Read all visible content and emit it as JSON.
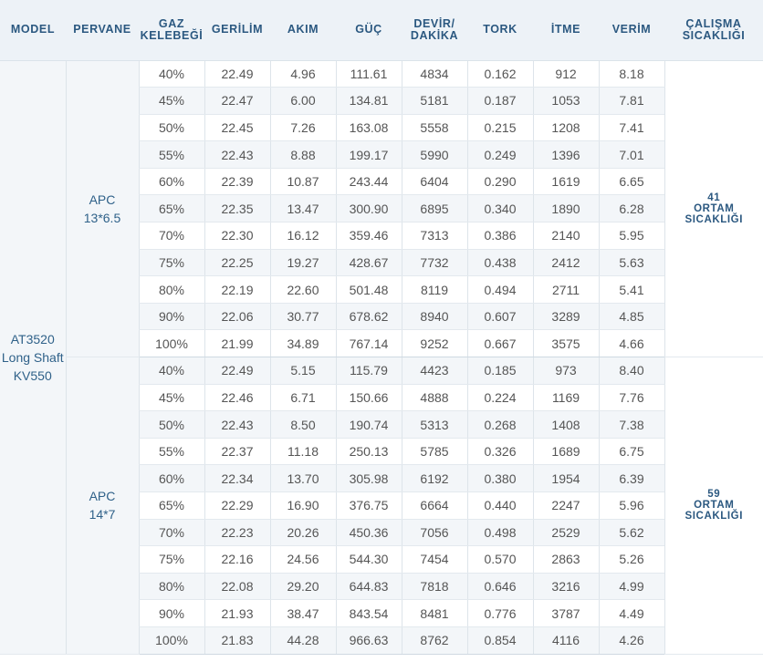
{
  "headers": [
    [
      "MODEL"
    ],
    [
      "PERVANE"
    ],
    [
      "GAZ",
      "KELEBEĞİ"
    ],
    [
      "GERİLİM"
    ],
    [
      "AKIM"
    ],
    [
      "GÜÇ"
    ],
    [
      "DEVİR/",
      "DAKİKA"
    ],
    [
      "TORK"
    ],
    [
      "İTME"
    ],
    [
      "VERİM"
    ],
    [
      "ÇALIŞMA",
      "SICAKLIĞI"
    ]
  ],
  "model": [
    "AT3520",
    "Long Shaft",
    "KV550"
  ],
  "groups": [
    {
      "propeller": [
        "APC",
        "13*6.5"
      ],
      "temp": [
        "41",
        "ORTAM",
        "SICAKLIĞI"
      ],
      "rows": [
        [
          "40%",
          "22.49",
          "4.96",
          "111.61",
          "4834",
          "0.162",
          "912",
          "8.18"
        ],
        [
          "45%",
          "22.47",
          "6.00",
          "134.81",
          "5181",
          "0.187",
          "1053",
          "7.81"
        ],
        [
          "50%",
          "22.45",
          "7.26",
          "163.08",
          "5558",
          "0.215",
          "1208",
          "7.41"
        ],
        [
          "55%",
          "22.43",
          "8.88",
          "199.17",
          "5990",
          "0.249",
          "1396",
          "7.01"
        ],
        [
          "60%",
          "22.39",
          "10.87",
          "243.44",
          "6404",
          "0.290",
          "1619",
          "6.65"
        ],
        [
          "65%",
          "22.35",
          "13.47",
          "300.90",
          "6895",
          "0.340",
          "1890",
          "6.28"
        ],
        [
          "70%",
          "22.30",
          "16.12",
          "359.46",
          "7313",
          "0.386",
          "2140",
          "5.95"
        ],
        [
          "75%",
          "22.25",
          "19.27",
          "428.67",
          "7732",
          "0.438",
          "2412",
          "5.63"
        ],
        [
          "80%",
          "22.19",
          "22.60",
          "501.48",
          "8119",
          "0.494",
          "2711",
          "5.41"
        ],
        [
          "90%",
          "22.06",
          "30.77",
          "678.62",
          "8940",
          "0.607",
          "3289",
          "4.85"
        ],
        [
          "100%",
          "21.99",
          "34.89",
          "767.14",
          "9252",
          "0.667",
          "3575",
          "4.66"
        ]
      ]
    },
    {
      "propeller": [
        "APC",
        "14*7"
      ],
      "temp": [
        "59",
        "ORTAM",
        "SICAKLIĞI"
      ],
      "rows": [
        [
          "40%",
          "22.49",
          "5.15",
          "115.79",
          "4423",
          "0.185",
          "973",
          "8.40"
        ],
        [
          "45%",
          "22.46",
          "6.71",
          "150.66",
          "4888",
          "0.224",
          "1169",
          "7.76"
        ],
        [
          "50%",
          "22.43",
          "8.50",
          "190.74",
          "5313",
          "0.268",
          "1408",
          "7.38"
        ],
        [
          "55%",
          "22.37",
          "11.18",
          "250.13",
          "5785",
          "0.326",
          "1689",
          "6.75"
        ],
        [
          "60%",
          "22.34",
          "13.70",
          "305.98",
          "6192",
          "0.380",
          "1954",
          "6.39"
        ],
        [
          "65%",
          "22.29",
          "16.90",
          "376.75",
          "6664",
          "0.440",
          "2247",
          "5.96"
        ],
        [
          "70%",
          "22.23",
          "20.26",
          "450.36",
          "7056",
          "0.498",
          "2529",
          "5.62"
        ],
        [
          "75%",
          "22.16",
          "24.56",
          "544.30",
          "7454",
          "0.570",
          "2863",
          "5.26"
        ],
        [
          "80%",
          "22.08",
          "29.20",
          "644.83",
          "7818",
          "0.646",
          "3216",
          "4.99"
        ],
        [
          "90%",
          "21.93",
          "38.47",
          "843.54",
          "8481",
          "0.776",
          "3787",
          "4.49"
        ],
        [
          "100%",
          "21.83",
          "44.28",
          "966.63",
          "8762",
          "0.854",
          "4116",
          "4.26"
        ]
      ]
    }
  ]
}
